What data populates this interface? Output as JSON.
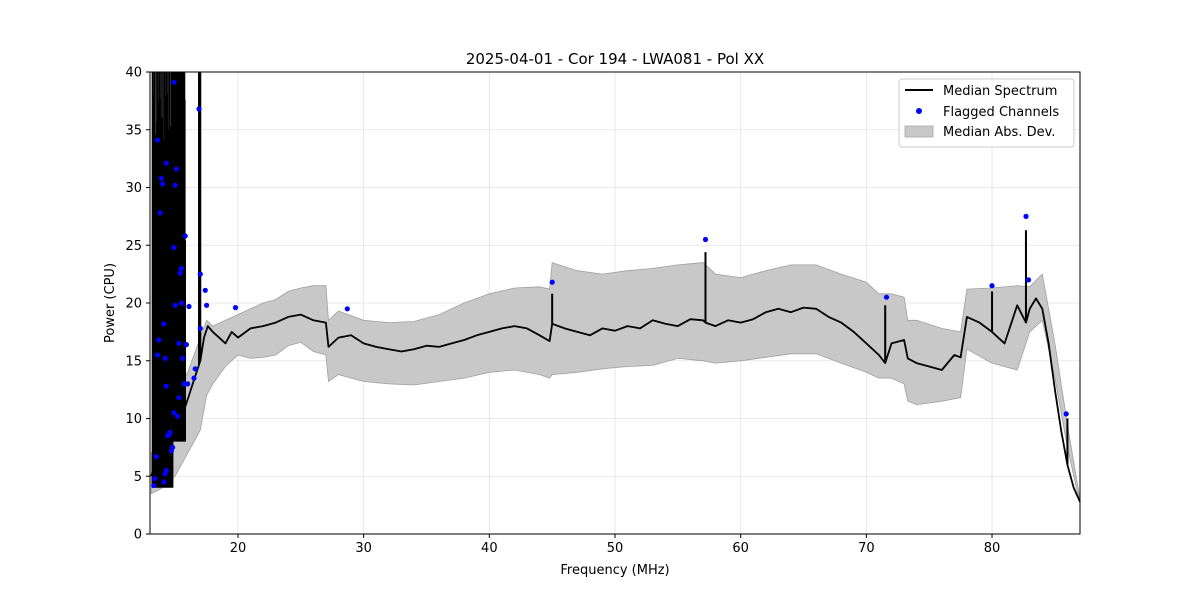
{
  "chart_data": {
    "type": "line",
    "title": "2025-04-01 - Cor 194 - LWA081 - Pol XX",
    "xlabel": "Frequency (MHz)",
    "ylabel": "Power (CPU)",
    "xlim": [
      13,
      87
    ],
    "ylim": [
      0,
      40
    ],
    "xticks": [
      20,
      30,
      40,
      50,
      60,
      70,
      80
    ],
    "yticks": [
      0,
      5,
      10,
      15,
      20,
      25,
      30,
      35,
      40
    ],
    "grid": true,
    "legend_position": "top-right",
    "legend": [
      {
        "label": "Median Spectrum",
        "kind": "line",
        "color": "#000000"
      },
      {
        "label": "Flagged Channels",
        "kind": "marker",
        "color": "#0000ff"
      },
      {
        "label": "Median Abs. Dev.",
        "kind": "patch",
        "color": "#c8c8c8"
      }
    ],
    "series": [
      {
        "name": "Median Spectrum",
        "kind": "line",
        "color": "#000000",
        "x": [
          13.1,
          13.4,
          13.7,
          14.0,
          14.3,
          14.6,
          14.9,
          15.2,
          15.5,
          15.8,
          16.1,
          16.4,
          16.7,
          17.0,
          17.3,
          17.6,
          18.0,
          18.5,
          19.0,
          19.5,
          20.0,
          21.0,
          22.0,
          23.0,
          24.0,
          25.0,
          26.0,
          27.0,
          27.2,
          28.0,
          29.0,
          30.0,
          31.0,
          32.0,
          33.0,
          34.0,
          35.0,
          36.0,
          37.0,
          38.0,
          39.0,
          40.0,
          41.0,
          42.0,
          43.0,
          44.0,
          44.8,
          45.0,
          46.0,
          47.0,
          48.0,
          49.0,
          50.0,
          51.0,
          52.0,
          53.0,
          54.0,
          55.0,
          56.0,
          57.0,
          57.2,
          58.0,
          59.0,
          60.0,
          61.0,
          62.0,
          63.0,
          64.0,
          65.0,
          66.0,
          67.0,
          68.0,
          69.0,
          70.0,
          71.0,
          71.5,
          72.0,
          73.0,
          73.3,
          74.0,
          75.0,
          76.0,
          77.0,
          77.5,
          78.0,
          79.0,
          80.0,
          81.0,
          82.0,
          82.7,
          83.0,
          83.5,
          84.0,
          84.5,
          85.0,
          85.5,
          86.0,
          86.5,
          87.0
        ],
        "y": [
          5,
          6,
          7,
          6,
          7,
          8,
          9,
          10,
          11,
          11,
          12,
          13,
          14,
          15,
          17,
          18,
          17.5,
          17,
          16.5,
          17.5,
          17,
          17.8,
          18,
          18.3,
          18.8,
          19,
          18.5,
          18.3,
          16.2,
          17,
          17.2,
          16.5,
          16.2,
          16.0,
          15.8,
          16.0,
          16.3,
          16.2,
          16.5,
          16.8,
          17.2,
          17.5,
          17.8,
          18.0,
          17.8,
          17.2,
          16.7,
          18.2,
          17.8,
          17.5,
          17.2,
          17.8,
          17.6,
          18.0,
          17.8,
          18.5,
          18.2,
          18.0,
          18.6,
          18.5,
          18.3,
          18.0,
          18.5,
          18.3,
          18.6,
          19.2,
          19.5,
          19.2,
          19.6,
          19.5,
          18.8,
          18.3,
          17.5,
          16.5,
          15.5,
          14.8,
          16.5,
          16.8,
          15.2,
          14.8,
          14.5,
          14.2,
          15.5,
          15.3,
          18.8,
          18.3,
          17.5,
          16.5,
          19.8,
          18.3,
          19.5,
          20.4,
          19.5,
          16.5,
          12.5,
          9.0,
          6.0,
          4.0,
          2.8
        ]
      },
      {
        "name": "Median Abs. Dev.",
        "kind": "band",
        "color": "#c8c8c8",
        "x": [
          13.1,
          14.0,
          15.0,
          16.0,
          17.0,
          17.5,
          18.0,
          19.0,
          20.0,
          21.0,
          22.0,
          23.0,
          24.0,
          25.0,
          26.0,
          27.0,
          27.2,
          28.0,
          30.0,
          32.0,
          34.0,
          36.0,
          38.0,
          40.0,
          42.0,
          44.0,
          44.8,
          45.0,
          47.0,
          49.0,
          51.0,
          53.0,
          55.0,
          57.0,
          58.0,
          60.0,
          62.0,
          64.0,
          66.0,
          68.0,
          70.0,
          71.0,
          72.0,
          73.0,
          73.3,
          74.0,
          76.0,
          77.5,
          78.0,
          80.0,
          82.0,
          83.0,
          84.0,
          85.0,
          86.0,
          87.0
        ],
        "upper": [
          7,
          9,
          12,
          14,
          17,
          18.5,
          18,
          18.5,
          19,
          19.5,
          20,
          20.3,
          21,
          21.3,
          21.5,
          21.5,
          18.5,
          19.3,
          18.5,
          18.3,
          18.4,
          19,
          20,
          20.8,
          21.3,
          21.4,
          21.2,
          23.5,
          22.8,
          22.5,
          22.8,
          23,
          23.3,
          23.5,
          22.5,
          22.2,
          22.8,
          23.3,
          23.3,
          22.5,
          21.8,
          20.8,
          20.8,
          20.5,
          18.5,
          18.5,
          17.8,
          17.5,
          21.2,
          21.3,
          21.5,
          21.4,
          22.5,
          16.5,
          9.5,
          3.0
        ],
        "lower": [
          3.5,
          4,
          5,
          7,
          9,
          12,
          13,
          14.5,
          15.5,
          15.2,
          15.3,
          15.5,
          16.3,
          16.6,
          15.8,
          15.5,
          13.2,
          13.8,
          13.2,
          13.0,
          12.9,
          13.2,
          13.5,
          14.0,
          14.2,
          13.8,
          13.5,
          13.8,
          14.0,
          14.3,
          14.5,
          14.6,
          15.2,
          15.0,
          14.8,
          15.0,
          15.3,
          15.6,
          15.6,
          14.8,
          14.0,
          13.5,
          13.5,
          13.0,
          11.5,
          11.2,
          11.5,
          11.8,
          16.0,
          14.8,
          14.2,
          17.5,
          18.5,
          13.5,
          7.5,
          2.6
        ]
      }
    ],
    "spikes": [
      {
        "x": 16.9,
        "top": 40
      },
      {
        "x": 17.0,
        "top": 40
      },
      {
        "x": 45.0,
        "top": 20.8
      },
      {
        "x": 57.2,
        "top": 24.4
      },
      {
        "x": 71.5,
        "top": 19.8
      },
      {
        "x": 80.0,
        "top": 21.0
      },
      {
        "x": 82.7,
        "top": 26.3
      },
      {
        "x": 86.0,
        "top": 10.0
      }
    ],
    "rfi_clusters": [
      {
        "x_start": 13.2,
        "x_end": 14.8,
        "low": 4,
        "high": 40
      },
      {
        "x_start": 14.8,
        "x_end": 15.8,
        "low": 8,
        "high": 40
      }
    ],
    "flagged_channels": {
      "name": "Flagged Channels",
      "color": "#0000ff",
      "points": [
        [
          13.3,
          4.2
        ],
        [
          13.4,
          4.8
        ],
        [
          13.5,
          6.7
        ],
        [
          13.6,
          15.5
        ],
        [
          13.7,
          16.8
        ],
        [
          13.8,
          27.8
        ],
        [
          13.6,
          34.1
        ],
        [
          13.9,
          30.8
        ],
        [
          14.0,
          30.3
        ],
        [
          14.1,
          18.2
        ],
        [
          14.2,
          15.2
        ],
        [
          14.3,
          12.8
        ],
        [
          14.1,
          4.5
        ],
        [
          14.2,
          5.2
        ],
        [
          14.3,
          5.5
        ],
        [
          14.5,
          8.6
        ],
        [
          14.6,
          8.8
        ],
        [
          14.4,
          8.5
        ],
        [
          14.3,
          32.1
        ],
        [
          14.7,
          7.2
        ],
        [
          14.8,
          7.5
        ],
        [
          14.9,
          10.5
        ],
        [
          15.0,
          19.8
        ],
        [
          14.9,
          24.8
        ],
        [
          15.0,
          30.2
        ],
        [
          15.1,
          31.6
        ],
        [
          14.9,
          39.1
        ],
        [
          15.2,
          10.2
        ],
        [
          15.3,
          11.8
        ],
        [
          15.3,
          16.5
        ],
        [
          15.4,
          22.6
        ],
        [
          15.5,
          23.0
        ],
        [
          15.5,
          20.0
        ],
        [
          15.6,
          15.2
        ],
        [
          15.7,
          13.0
        ],
        [
          15.8,
          25.8
        ],
        [
          15.9,
          16.4
        ],
        [
          16.0,
          13.0
        ],
        [
          16.1,
          19.7
        ],
        [
          16.5,
          13.5
        ],
        [
          16.6,
          14.3
        ],
        [
          16.9,
          36.8
        ],
        [
          17.0,
          22.5
        ],
        [
          17.0,
          17.8
        ],
        [
          17.4,
          21.1
        ],
        [
          17.5,
          19.8
        ],
        [
          19.8,
          19.6
        ],
        [
          28.7,
          19.5
        ],
        [
          45.0,
          21.8
        ],
        [
          57.2,
          25.5
        ],
        [
          71.6,
          20.5
        ],
        [
          80.0,
          21.5
        ],
        [
          82.7,
          27.5
        ],
        [
          82.9,
          22.0
        ],
        [
          85.9,
          10.4
        ]
      ]
    }
  }
}
